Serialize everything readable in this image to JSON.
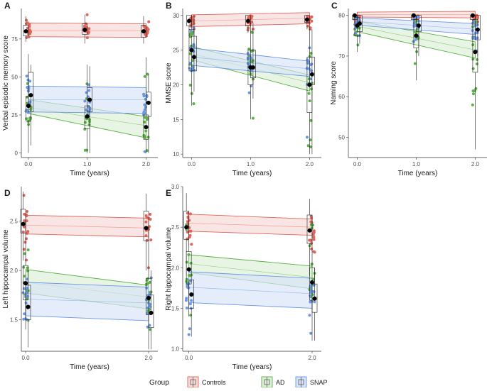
{
  "colors": {
    "Controls": "#E0645A",
    "AD": "#5BB047",
    "SNAP": "#6A96E4"
  },
  "legend": {
    "title": "Group",
    "items": [
      "Controls",
      "AD",
      "SNAP"
    ]
  },
  "chart_data": [
    {
      "panel": "A",
      "type": "scatter",
      "ylabel": "Verbal episodic memory score",
      "xlabel": "Time (years)",
      "x_ticks": [
        "0.0",
        "1.0",
        "2.0"
      ],
      "y_ticks": [
        0,
        25,
        50,
        75
      ],
      "ylim": [
        -3,
        95
      ],
      "xlim": [
        -0.12,
        2.2
      ],
      "series": [
        {
          "name": "Controls",
          "fit": [
            [
              0,
              80.5
            ],
            [
              2,
              80.5
            ]
          ],
          "ci": [
            [
              0,
              76.5,
              85.5
            ],
            [
              2,
              76.0,
              85.0
            ]
          ],
          "means": [
            [
              0,
              80
            ],
            [
              1,
              81
            ],
            [
              2,
              80
            ]
          ],
          "box": [
            [
              0,
              77,
              84,
              73,
              90
            ],
            [
              1,
              78,
              85,
              72,
              91
            ],
            [
              2,
              76,
              84,
              72,
              90
            ]
          ]
        },
        {
          "name": "AD",
          "fit": [
            [
              0,
              30
            ],
            [
              2,
              18
            ]
          ],
          "ci": [
            [
              0,
              26,
              35
            ],
            [
              2,
              10,
              24
            ]
          ],
          "means": [
            [
              0,
              31
            ],
            [
              1,
              24
            ],
            [
              2,
              17
            ]
          ],
          "box": [
            [
              0,
              21,
              37,
              0,
              65
            ],
            [
              1,
              16,
              31,
              0,
              58
            ],
            [
              2,
              9,
              25,
              0,
              63
            ]
          ]
        },
        {
          "name": "SNAP",
          "fit": [
            [
              0,
              35
            ],
            [
              2,
              35
            ]
          ],
          "ci": [
            [
              0,
              27,
              44
            ],
            [
              2,
              26,
              43
            ]
          ],
          "means": [
            [
              0,
              38
            ],
            [
              1,
              35
            ],
            [
              2,
              33
            ]
          ],
          "box": [
            [
              0,
              27,
              53,
              5,
              58
            ],
            [
              1,
              27,
              43,
              0,
              57
            ],
            [
              2,
              24,
              40,
              0,
              52
            ]
          ]
        }
      ]
    },
    {
      "panel": "B",
      "type": "scatter",
      "ylabel": "MMSE score",
      "xlabel": "Time (years)",
      "x_ticks": [
        "0.0",
        "1.0",
        "2.0"
      ],
      "y_ticks": [
        10,
        15,
        20,
        25,
        30
      ],
      "ylim": [
        9.5,
        31
      ],
      "xlim": [
        -0.15,
        2.2
      ],
      "series": [
        {
          "name": "Controls",
          "fit": [
            [
              0,
              29.2
            ],
            [
              2,
              29.6
            ]
          ],
          "ci": [
            [
              0,
              28.4,
              30.1
            ],
            [
              2,
              28.8,
              30.4
            ]
          ],
          "means": [
            [
              0,
              29.2
            ],
            [
              1,
              29.2
            ],
            [
              2,
              29.4
            ]
          ],
          "box": [
            [
              0,
              28.5,
              30,
              27,
              30
            ],
            [
              1,
              28.5,
              30,
              27.5,
              30
            ],
            [
              2,
              29,
              30,
              28,
              30
            ]
          ]
        },
        {
          "name": "AD",
          "fit": [
            [
              0,
              24.5
            ],
            [
              2,
              20.3
            ]
          ],
          "ci": [
            [
              0,
              23.6,
              25.5
            ],
            [
              2,
              19.1,
              21.4
            ]
          ],
          "means": [
            [
              0,
              25
            ],
            [
              1,
              22.5
            ],
            [
              2,
              20
            ]
          ],
          "box": [
            [
              0,
              22,
              28,
              17,
              30
            ],
            [
              1,
              20,
              25,
              15,
              29
            ],
            [
              2,
              16,
              24,
              10,
              29
            ]
          ]
        },
        {
          "name": "SNAP",
          "fit": [
            [
              0,
              24.0
            ],
            [
              2,
              22.3
            ]
          ],
          "ci": [
            [
              0,
              22.8,
              25.3
            ],
            [
              2,
              21.2,
              23.4
            ]
          ],
          "means": [
            [
              0,
              24
            ],
            [
              1,
              22.5
            ],
            [
              2,
              21.5
            ]
          ],
          "box": [
            [
              0,
              22,
              27,
              19,
              30
            ],
            [
              1,
              21,
              25,
              18,
              29
            ],
            [
              2,
              20,
              24,
              10,
              28
            ]
          ]
        }
      ]
    },
    {
      "panel": "C",
      "type": "scatter",
      "ylabel": "Naming score",
      "xlabel": "Time (years)",
      "x_ticks": [
        "0.0",
        "1.0",
        "2.0"
      ],
      "y_ticks": [
        50,
        60,
        70,
        80
      ],
      "ylim": [
        45,
        81.7
      ],
      "xlim": [
        -0.15,
        2.2
      ],
      "series": [
        {
          "name": "Controls",
          "fit": [
            [
              0,
              80.2
            ],
            [
              2,
              80.2
            ]
          ],
          "ci": [
            [
              0,
              79.6,
              80.8
            ],
            [
              2,
              79.4,
              81
            ]
          ],
          "means": [
            [
              0,
              80
            ],
            [
              1,
              80
            ],
            [
              2,
              80
            ]
          ],
          "box": [
            [
              0,
              79,
              80,
              78,
              80
            ],
            [
              1,
              79,
              80,
              78,
              80
            ],
            [
              2,
              79,
              80,
              78,
              80
            ]
          ]
        },
        {
          "name": "AD",
          "fit": [
            [
              0,
              77.3
            ],
            [
              2,
              71.5
            ]
          ],
          "ci": [
            [
              0,
              76,
              78.6
            ],
            [
              2,
              69.5,
              73.5
            ]
          ],
          "means": [
            [
              0,
              77.5
            ],
            [
              1,
              75
            ],
            [
              2,
              71
            ]
          ],
          "box": [
            [
              0,
              75,
              79.5,
              71,
              80
            ],
            [
              1,
              72,
              79,
              64,
              80
            ],
            [
              2,
              66,
              79,
              47,
              80
            ]
          ]
        },
        {
          "name": "SNAP",
          "fit": [
            [
              0,
              78.5
            ],
            [
              2,
              76.6
            ]
          ],
          "ci": [
            [
              0,
              77.6,
              79.4
            ],
            [
              2,
              75.3,
              78
            ]
          ],
          "means": [
            [
              0,
              78
            ],
            [
              1,
              77.5
            ],
            [
              2,
              76.5
            ]
          ],
          "box": [
            [
              0,
              76,
              80,
              73,
              80
            ],
            [
              1,
              76,
              80,
              70,
              80
            ],
            [
              2,
              74,
              80,
              70,
              80
            ]
          ]
        }
      ]
    },
    {
      "panel": "D",
      "type": "scatter",
      "ylabel": "Left hippocampal volume",
      "xlabel": "Time (years)",
      "x_ticks": [
        "0.0",
        "2.0"
      ],
      "y_ticks": [
        1.5,
        2.0,
        2.5
      ],
      "ylim": [
        1.18,
        2.85
      ],
      "xlim": [
        -0.07,
        2.15
      ],
      "series": [
        {
          "name": "Controls",
          "fit": [
            [
              0,
              2.46
            ],
            [
              2,
              2.43
            ]
          ],
          "ci": [
            [
              0,
              2.37,
              2.56
            ],
            [
              2,
              2.34,
              2.53
            ]
          ],
          "means": [
            [
              0,
              2.47
            ],
            [
              2,
              2.43
            ]
          ],
          "box": [
            [
              0,
              2.38,
              2.62,
              2.1,
              2.8
            ],
            [
              2,
              2.3,
              2.6,
              2.0,
              2.78
            ]
          ]
        },
        {
          "name": "AD",
          "fit": [
            [
              0,
              1.88
            ],
            [
              2,
              1.73
            ]
          ],
          "ci": [
            [
              0,
              1.77,
              2.01
            ],
            [
              2,
              1.61,
              1.85
            ]
          ],
          "means": [
            [
              0,
              1.87
            ],
            [
              2,
              1.72
            ]
          ],
          "box": [
            [
              0,
              1.7,
              2.05,
              1.4,
              2.5
            ],
            [
              2,
              1.55,
              1.92,
              1.2,
              2.4
            ]
          ]
        },
        {
          "name": "SNAP",
          "fit": [
            [
              0,
              1.71
            ],
            [
              2,
              1.67
            ]
          ],
          "ci": [
            [
              0,
              1.54,
              1.88
            ],
            [
              2,
              1.49,
              1.83
            ]
          ],
          "means": [
            [
              0,
              1.63
            ],
            [
              2,
              1.57
            ]
          ],
          "box": [
            [
              0,
              1.5,
              1.85,
              1.22,
              2.0
            ],
            [
              2,
              1.42,
              1.75,
              1.2,
              2.0
            ]
          ]
        }
      ]
    },
    {
      "panel": "E",
      "type": "scatter",
      "ylabel": "Right hippocampal volume",
      "xlabel": "Time (years)",
      "x_ticks": [
        "0.0",
        "2.0"
      ],
      "y_ticks": [
        1.0,
        1.5,
        2.0,
        2.5,
        3.0
      ],
      "ylim": [
        0.97,
        3.0
      ],
      "xlim": [
        -0.1,
        2.15
      ],
      "series": [
        {
          "name": "Controls",
          "fit": [
            [
              0,
              2.55
            ],
            [
              2,
              2.5
            ]
          ],
          "ci": [
            [
              0,
              2.45,
              2.66
            ],
            [
              2,
              2.4,
              2.6
            ]
          ],
          "means": [
            [
              0,
              2.5
            ],
            [
              2,
              2.46
            ]
          ],
          "box": [
            [
              0,
              2.35,
              2.7,
              1.9,
              2.92
            ],
            [
              2,
              2.3,
              2.65,
              1.9,
              2.85
            ]
          ]
        },
        {
          "name": "AD",
          "fit": [
            [
              0,
              2.05
            ],
            [
              2,
              1.88
            ]
          ],
          "ci": [
            [
              0,
              1.94,
              2.16
            ],
            [
              2,
              1.74,
              2.02
            ]
          ],
          "means": [
            [
              0,
              1.98
            ],
            [
              2,
              1.82
            ]
          ],
          "box": [
            [
              0,
              1.8,
              2.2,
              1.4,
              2.6
            ],
            [
              2,
              1.6,
              2.0,
              1.1,
              2.6
            ]
          ]
        },
        {
          "name": "SNAP",
          "fit": [
            [
              0,
              1.76
            ],
            [
              2,
              1.68
            ]
          ],
          "ci": [
            [
              0,
              1.57,
              1.95
            ],
            [
              2,
              1.5,
              1.87
            ]
          ],
          "means": [
            [
              0,
              1.67
            ],
            [
              2,
              1.62
            ]
          ],
          "box": [
            [
              0,
              1.5,
              1.85,
              1.15,
              2.0
            ],
            [
              2,
              1.45,
              1.8,
              1.1,
              2.0
            ]
          ]
        }
      ]
    }
  ]
}
